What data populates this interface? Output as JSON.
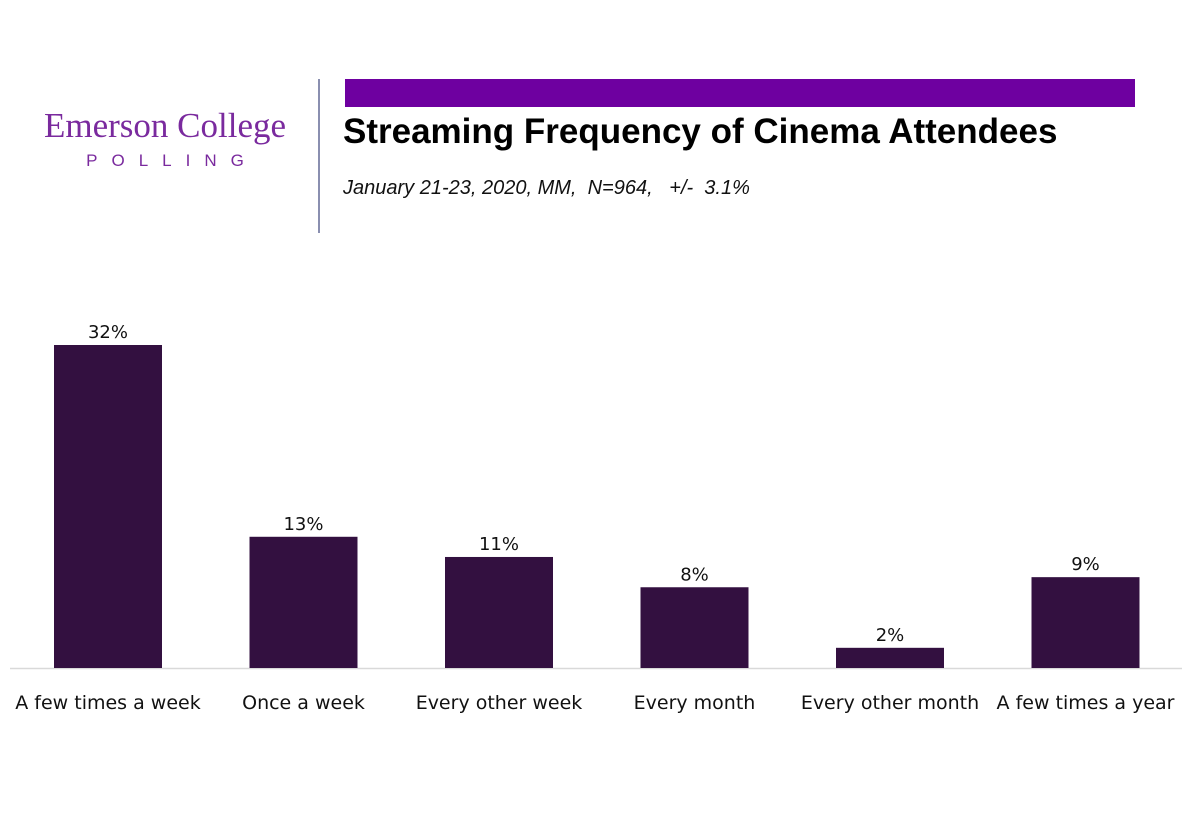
{
  "logo": {
    "main": "Emerson College",
    "sub": "POLLING"
  },
  "header": {
    "title": "Streaming Frequency of Cinema Attendees",
    "subtitle": "January 21-23, 2020, MM,  N=964,   +/-  3.1%"
  },
  "colors": {
    "bar": "#331040",
    "accent": "#6e00a0",
    "logo": "#7a2a9e"
  },
  "chart_data": {
    "type": "bar",
    "categories": [
      "A few times a week",
      "Once a week",
      "Every other week",
      "Every month",
      "Every other month",
      "A few times a year"
    ],
    "values": [
      32,
      13,
      11,
      8,
      2,
      9
    ],
    "value_labels": [
      "32%",
      "13%",
      "11%",
      "8%",
      "2%",
      "9%"
    ],
    "title": "Streaming Frequency of Cinema Attendees",
    "xlabel": "",
    "ylabel": "",
    "ylim": [
      0,
      32
    ],
    "grid": false,
    "legend": "none"
  }
}
